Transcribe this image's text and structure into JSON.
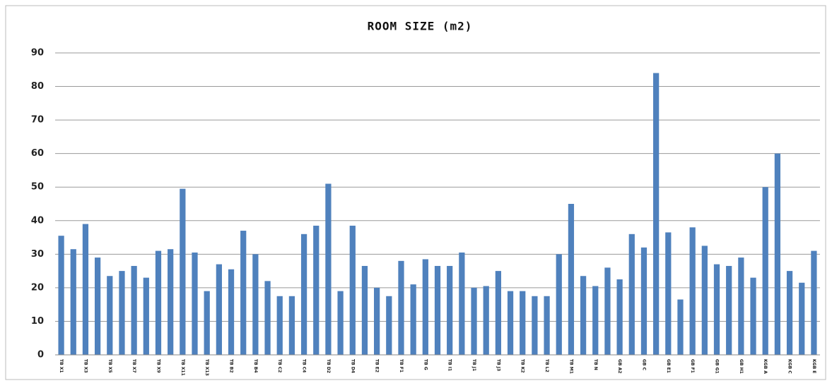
{
  "chart_data": {
    "type": "bar",
    "title": "ROOM SIZE (m2)",
    "categories": [
      "TB X1",
      null,
      "TB X3",
      null,
      "TB X5",
      null,
      "TB X7",
      null,
      "TB X9",
      null,
      "TB X11",
      null,
      "TB X13",
      null,
      "TB B2",
      null,
      "TB B4",
      null,
      "TB C2",
      null,
      "TB C4",
      null,
      "TB D2",
      null,
      "TB D4",
      null,
      "TB E2",
      null,
      "TB F1",
      null,
      "TB G",
      null,
      "TB I1",
      null,
      "TB J1",
      null,
      "TB J3",
      null,
      "TB K2",
      null,
      "TB L2",
      null,
      "TB M1",
      null,
      "TB N",
      null,
      "GB A2",
      null,
      "GB C",
      null,
      "GB E1",
      null,
      "GB F1",
      null,
      "GB G1",
      null,
      "GB H1",
      null,
      "KGB A",
      null,
      "KGB C",
      null,
      "KGB E"
    ],
    "values": [
      35.5,
      31.5,
      39,
      29,
      23.5,
      25,
      26.5,
      23,
      31,
      31.5,
      49.5,
      30.5,
      19,
      27,
      25.5,
      37,
      30,
      22,
      17.5,
      17.5,
      36,
      38.5,
      51,
      19,
      38.5,
      26.5,
      20,
      17.5,
      28,
      21,
      28.5,
      26.5,
      26.5,
      30.5,
      20,
      20.5,
      25,
      19,
      19,
      17.5,
      17.5,
      30,
      45,
      23.5,
      20.5,
      26,
      22.5,
      36,
      32,
      84,
      36.5,
      16.5,
      38,
      32.5,
      27,
      26.5,
      29,
      23,
      50,
      60,
      25,
      21.5,
      31
    ],
    "color": "#4f81bd",
    "ylim": [
      0,
      90
    ],
    "yticks": [
      0,
      10,
      20,
      30,
      40,
      50,
      60,
      70,
      80,
      90
    ],
    "grid": true
  }
}
